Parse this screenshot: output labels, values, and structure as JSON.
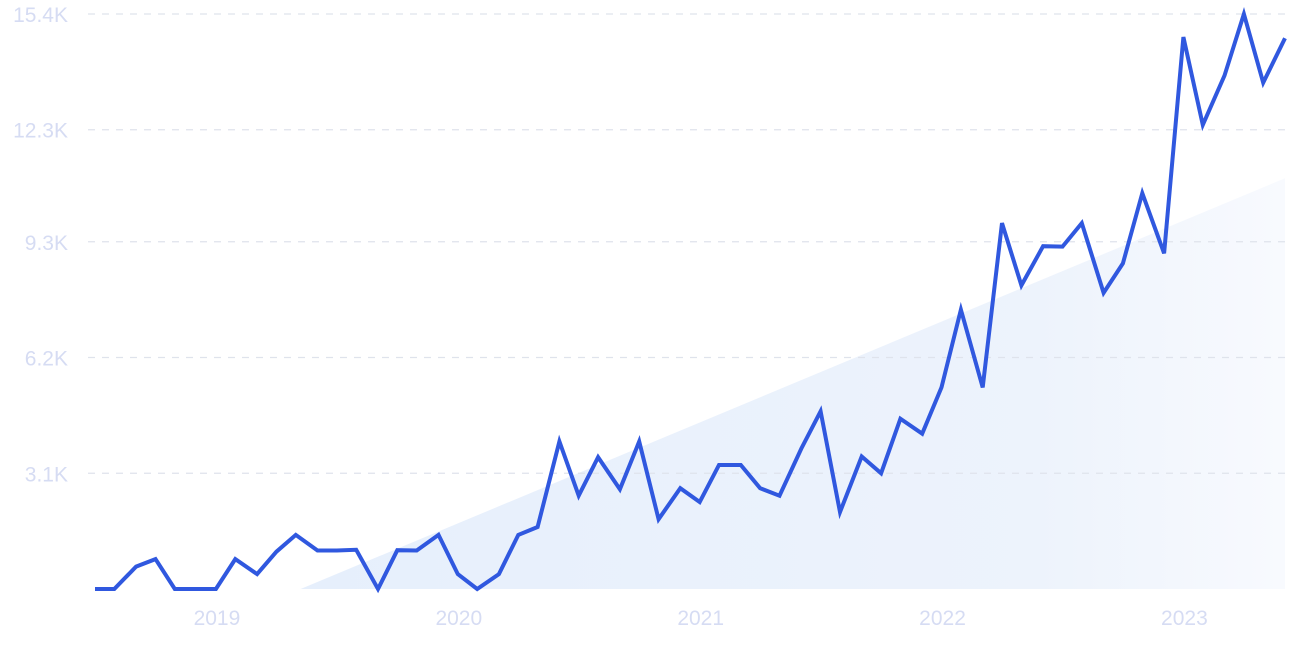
{
  "chart_data": {
    "type": "line",
    "title": "",
    "xlabel": "",
    "ylabel": "",
    "y_ticks": [
      "15.4K",
      "12.3K",
      "9.3K",
      "6.2K",
      "3.1K"
    ],
    "y_tick_values": [
      15400,
      12300,
      9300,
      6200,
      3100
    ],
    "ylim": [
      0,
      15400
    ],
    "x_ticks": [
      "2019",
      "2020",
      "2021",
      "2022",
      "2023"
    ],
    "x_tick_values": [
      2019.0,
      2020.0,
      2021.0,
      2022.0,
      2023.0
    ],
    "xlim": [
      2018.5,
      2023.42
    ],
    "grid": true,
    "legend": "none",
    "colors": {
      "line": "#3058df",
      "trend_fill": "#e9f1fc",
      "grid": "#dfe3ec",
      "tick_text": "#d6dcf3"
    },
    "series": [
      {
        "x": [
          2018.5,
          2018.58,
          2018.67,
          2018.75,
          2018.83,
          2018.92,
          2019.0,
          2019.08,
          2019.17,
          2019.25,
          2019.33,
          2019.42,
          2019.5,
          2019.58,
          2019.67,
          2019.75,
          2019.83,
          2019.92,
          2020.0,
          2020.08,
          2020.17,
          2020.25,
          2020.33,
          2020.42,
          2020.5,
          2020.58,
          2020.67,
          2020.75,
          2020.83,
          2020.92,
          2021.0,
          2021.08,
          2021.17,
          2021.25,
          2021.33,
          2021.42,
          2021.5,
          2021.58,
          2021.67,
          2021.75,
          2021.83,
          2021.92,
          2022.0,
          2022.08,
          2022.17,
          2022.25,
          2022.33,
          2022.42,
          2022.5,
          2022.58,
          2022.67,
          2022.75,
          2022.83,
          2022.92,
          2023.0,
          2023.08,
          2023.17,
          2023.25,
          2023.33,
          2023.42
        ],
        "values": [
          0,
          0,
          600,
          800,
          0,
          0,
          0,
          800,
          400,
          1000,
          1450,
          1030,
          1030,
          1050,
          0,
          1040,
          1030,
          1450,
          400,
          0,
          400,
          1450,
          1660,
          3950,
          2500,
          3530,
          2670,
          3950,
          1870,
          2700,
          2330,
          3320,
          3320,
          2700,
          2500,
          3760,
          4760,
          2060,
          3550,
          3100,
          4560,
          4160,
          5400,
          7480,
          5400,
          9800,
          8130,
          9180,
          9170,
          9800,
          7930,
          8720,
          10600,
          8990,
          14780,
          12430,
          13750,
          15400,
          13560,
          14750
        ]
      }
    ],
    "trend_area": {
      "x": [
        2019.35,
        2023.42
      ],
      "y": [
        0,
        11000
      ]
    }
  }
}
